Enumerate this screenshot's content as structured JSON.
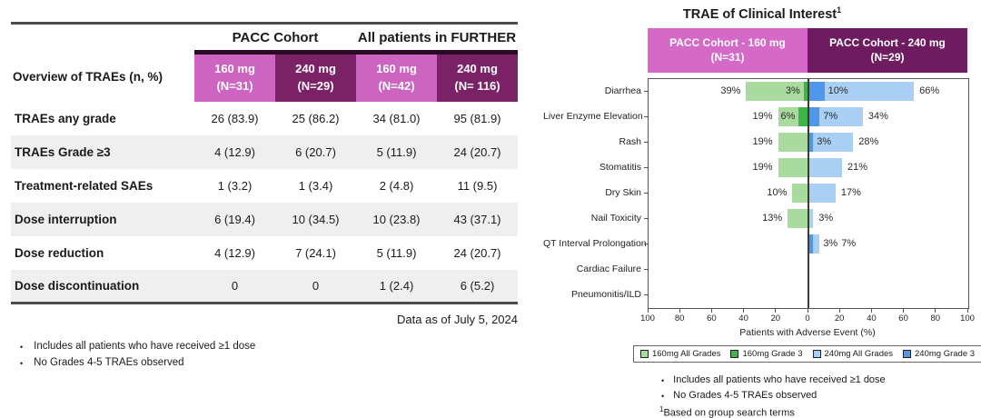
{
  "palette": {
    "table-pink": "#CE64C1",
    "table-purple": "#7B2166",
    "header-strip": "#2B0A26",
    "row-stripe": "#EFEFEF",
    "rule": "#4D4D4D",
    "axis": "#555555"
  },
  "chart_data": [
    {
      "type": "table",
      "group_headers": [
        "PACC Cohort",
        "All patients in FURTHER"
      ],
      "corner_label": "Overview of TRAEs (n, %)",
      "col_headers": [
        {
          "line1": "160 mg",
          "line2": "(N=31)",
          "variant": "pink"
        },
        {
          "line1": "240 mg",
          "line2": "(N=29)",
          "variant": "purple"
        },
        {
          "line1": "160 mg",
          "line2": "(N=42)",
          "variant": "pink"
        },
        {
          "line1": "240 mg",
          "line2": "(N= 116)",
          "variant": "purple"
        }
      ],
      "rows": [
        {
          "label": "TRAEs any grade",
          "values": [
            "26 (83.9)",
            "25 (86.2)",
            "34 (81.0)",
            "95 (81.9)"
          ]
        },
        {
          "label": "TRAEs Grade ≥3",
          "values": [
            "4 (12.9)",
            "6 (20.7)",
            "5 (11.9)",
            "24 (20.7)"
          ]
        },
        {
          "label": "Treatment-related SAEs",
          "values": [
            "1 (3.2)",
            "1 (3.4)",
            "2 (4.8)",
            "11 (9.5)"
          ]
        },
        {
          "label": "Dose interruption",
          "values": [
            "6 (19.4)",
            "10 (34.5)",
            "10 (23.8)",
            "43 (37.1)"
          ]
        },
        {
          "label": "Dose reduction",
          "values": [
            "4 (12.9)",
            "7 (24.1)",
            "5 (11.9)",
            "24 (20.7)"
          ]
        },
        {
          "label": "Dose discontinuation",
          "values": [
            "0",
            "0",
            "1 (2.4)",
            "6 (5.2)"
          ]
        }
      ],
      "data_asof": "Data as of July 5, 2024",
      "notes": [
        "Includes all patients who have received ≥1 dose",
        "No Grades 4-5 TRAEs observed"
      ]
    },
    {
      "type": "bar",
      "variant": "diverging-horizontal",
      "title": "TRAE of Clinical Interest",
      "title_sup": "1",
      "group_headers": [
        {
          "line1": "PACC Cohort - 160 mg",
          "line2": "(N=31)",
          "color": "#D569C8"
        },
        {
          "line1": "PACC Cohort - 240 mg",
          "line2": "(N=29)",
          "color": "#6E1C5F"
        }
      ],
      "categories": [
        "Diarrhea",
        "Liver Enzyme Elevation",
        "Rash",
        "Stomatitis",
        "Dry Skin",
        "Nail Toxicity",
        "QT Interval Prolongation",
        "Cardiac Failure",
        "Pneumonitis/ILD"
      ],
      "series": [
        {
          "name": "160mg All Grades",
          "side": "left",
          "role": "all",
          "color": "#A9DB9E",
          "values": [
            39,
            19,
            19,
            19,
            10,
            13,
            0,
            0,
            0
          ]
        },
        {
          "name": "160mg Grade 3",
          "side": "left",
          "role": "grade3",
          "color": "#3EB54B",
          "values": [
            3,
            6,
            0,
            0,
            0,
            0,
            0,
            0,
            0
          ]
        },
        {
          "name": "240mg All Grades",
          "side": "right",
          "role": "all",
          "color": "#A9CFF4",
          "values": [
            66,
            34,
            28,
            21,
            17,
            3,
            7,
            0,
            0
          ]
        },
        {
          "name": "240mg Grade 3",
          "side": "right",
          "role": "grade3",
          "color": "#4E97EA",
          "values": [
            10,
            7,
            3,
            0,
            0,
            0,
            3,
            0,
            0
          ]
        }
      ],
      "value_suffix": "%",
      "xlabel": "Patients with Adverse Event (%)",
      "x_ticks": [
        100,
        80,
        60,
        40,
        20,
        0,
        20,
        40,
        60,
        80,
        100
      ],
      "axis_range_per_side": [
        0,
        100
      ],
      "grid": false,
      "legend_position": "bottom",
      "notes": [
        "Includes all patients who have received ≥1 dose",
        "No Grades 4-5 TRAEs observed"
      ],
      "footnote_sup": "1",
      "footnote": "Based on group search terms"
    }
  ]
}
